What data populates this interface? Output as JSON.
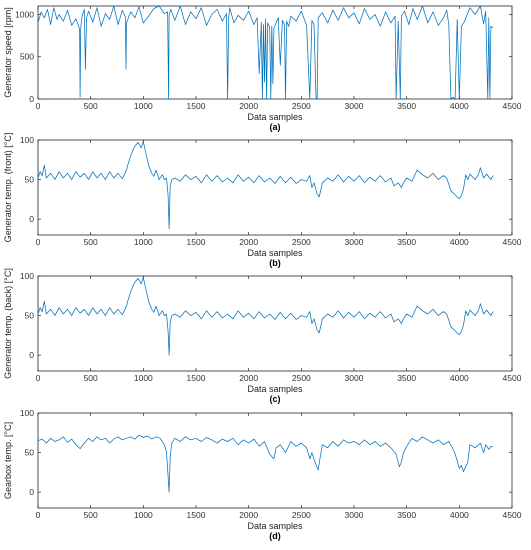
{
  "colors": {
    "line": "#0072BD",
    "axis": "#262626"
  },
  "chart_data": [
    {
      "type": "line",
      "panel": "(a)",
      "xlabel": "Data samples",
      "ylabel": "Generator speed [rpm]",
      "xlim": [
        0,
        4500
      ],
      "ylim": [
        0,
        1100
      ],
      "xticks": [
        0,
        500,
        1000,
        1500,
        2000,
        2500,
        3000,
        3500,
        4000,
        4500
      ],
      "yticks": [
        0,
        500,
        1000
      ],
      "series": [
        {
          "x": [
            0,
            30,
            60,
            90,
            120,
            150,
            180,
            200,
            240,
            280,
            320,
            360,
            395,
            400,
            405,
            420,
            440,
            450,
            460,
            480,
            520,
            560,
            600,
            640,
            680,
            720,
            760,
            800,
            830,
            835,
            840,
            880,
            920,
            960,
            1000,
            1050,
            1100,
            1150,
            1200,
            1230,
            1240,
            1245,
            1260,
            1300,
            1350,
            1400,
            1450,
            1500,
            1550,
            1600,
            1650,
            1700,
            1750,
            1790,
            1800,
            1810,
            1820,
            1860,
            1900,
            1950,
            2000,
            2050,
            2080,
            2100,
            2120,
            2130,
            2140,
            2150,
            2160,
            2170,
            2180,
            2200,
            2210,
            2220,
            2230,
            2240,
            2260,
            2280,
            2300,
            2320,
            2340,
            2350,
            2360,
            2380,
            2400,
            2450,
            2500,
            2550,
            2580,
            2600,
            2620,
            2640,
            2650,
            2660,
            2700,
            2750,
            2800,
            2850,
            2900,
            2950,
            3000,
            3050,
            3100,
            3150,
            3200,
            3250,
            3300,
            3350,
            3390,
            3400,
            3420,
            3440,
            3450,
            3480,
            3520,
            3560,
            3600,
            3650,
            3700,
            3750,
            3800,
            3850,
            3880,
            3900,
            3920,
            3940,
            3960,
            3980,
            4000,
            4020,
            4050,
            4100,
            4150,
            4200,
            4230,
            4250,
            4270,
            4280,
            4290,
            4300,
            4320
          ],
          "y": [
            900,
            1030,
            960,
            1060,
            880,
            1080,
            940,
            1000,
            920,
            1050,
            870,
            950,
            830,
            20,
            840,
            990,
            1060,
            350,
            960,
            1040,
            910,
            1080,
            860,
            1010,
            940,
            1100,
            880,
            1050,
            970,
            350,
            900,
            1030,
            960,
            1090,
            900,
            980,
            1070,
            1100,
            1010,
            1030,
            0,
            990,
            1060,
            930,
            1100,
            880,
            1030,
            950,
            1080,
            870,
            1000,
            1060,
            920,
            1010,
            0,
            960,
            1080,
            900,
            990,
            930,
            1040,
            880,
            960,
            300,
            910,
            0,
            880,
            200,
            950,
            0,
            900,
            850,
            0,
            860,
            180,
            840,
            900,
            960,
            400,
            930,
            880,
            0,
            920,
            860,
            980,
            920,
            1040,
            870,
            0,
            930,
            880,
            0,
            0,
            960,
            1020,
            900,
            1050,
            930,
            1080,
            960,
            1020,
            890,
            1070,
            940,
            1000,
            860,
            1030,
            900,
            980,
            0,
            920,
            0,
            980,
            1040,
            880,
            1070,
            940,
            1100,
            900,
            1030,
            870,
            960,
            1050,
            880,
            0,
            20,
            0,
            940,
            0,
            860,
            920,
            1080,
            1000,
            1100,
            890,
            1040,
            0,
            960,
            0,
            860,
            840
          ]
        }
      ]
    },
    {
      "type": "line",
      "panel": "(b)",
      "xlabel": "Data samples",
      "ylabel": "Generator temp. (front) [°C]",
      "xlim": [
        0,
        4500
      ],
      "ylim": [
        -20,
        100
      ],
      "xticks": [
        0,
        500,
        1000,
        1500,
        2000,
        2500,
        3000,
        3500,
        4000,
        4500
      ],
      "yticks": [
        0,
        50,
        100
      ],
      "series": [
        {
          "x": [
            0,
            20,
            40,
            60,
            80,
            120,
            160,
            200,
            240,
            280,
            320,
            360,
            400,
            440,
            480,
            520,
            560,
            600,
            640,
            680,
            720,
            760,
            800,
            840,
            860,
            880,
            900,
            920,
            950,
            980,
            1000,
            1020,
            1050,
            1080,
            1100,
            1120,
            1150,
            1180,
            1200,
            1220,
            1235,
            1245,
            1255,
            1270,
            1300,
            1350,
            1400,
            1450,
            1500,
            1550,
            1600,
            1650,
            1700,
            1750,
            1800,
            1850,
            1900,
            1950,
            2000,
            2050,
            2100,
            2150,
            2200,
            2250,
            2300,
            2350,
            2400,
            2450,
            2500,
            2550,
            2580,
            2600,
            2620,
            2650,
            2670,
            2700,
            2750,
            2800,
            2850,
            2900,
            2950,
            3000,
            3050,
            3100,
            3150,
            3200,
            3250,
            3300,
            3350,
            3380,
            3420,
            3450,
            3470,
            3500,
            3550,
            3600,
            3650,
            3700,
            3750,
            3800,
            3850,
            3880,
            3900,
            3920,
            3950,
            3980,
            4000,
            4020,
            4040,
            4060,
            4080,
            4100,
            4150,
            4180,
            4200,
            4230,
            4260,
            4300,
            4320
          ],
          "y": [
            52,
            60,
            55,
            68,
            52,
            58,
            50,
            60,
            52,
            58,
            50,
            60,
            53,
            58,
            50,
            60,
            52,
            58,
            50,
            60,
            52,
            58,
            51,
            62,
            72,
            80,
            87,
            92,
            97,
            90,
            98,
            86,
            68,
            58,
            54,
            62,
            50,
            56,
            50,
            52,
            30,
            -12,
            42,
            50,
            52,
            48,
            56,
            50,
            54,
            46,
            56,
            48,
            55,
            47,
            52,
            46,
            56,
            48,
            53,
            46,
            55,
            47,
            52,
            45,
            54,
            46,
            53,
            45,
            50,
            48,
            55,
            40,
            46,
            32,
            28,
            46,
            52,
            48,
            56,
            47,
            54,
            48,
            55,
            46,
            53,
            48,
            55,
            47,
            52,
            42,
            46,
            40,
            46,
            52,
            48,
            62,
            56,
            52,
            58,
            50,
            55,
            52,
            44,
            36,
            32,
            28,
            26,
            30,
            38,
            56,
            50,
            57,
            50,
            56,
            65,
            52,
            57,
            50,
            55
          ]
        }
      ]
    },
    {
      "type": "line",
      "panel": "(c)",
      "xlabel": "Data samples",
      "ylabel": "Generator temp. (back) [°C]",
      "xlim": [
        0,
        4500
      ],
      "ylim": [
        -20,
        100
      ],
      "xticks": [
        0,
        500,
        1000,
        1500,
        2000,
        2500,
        3000,
        3500,
        4000,
        4500
      ],
      "yticks": [
        0,
        50,
        100
      ],
      "series": [
        {
          "x": [
            0,
            20,
            40,
            60,
            80,
            120,
            160,
            200,
            240,
            280,
            320,
            360,
            400,
            440,
            480,
            520,
            560,
            600,
            640,
            680,
            720,
            760,
            800,
            840,
            860,
            880,
            900,
            920,
            950,
            980,
            1000,
            1020,
            1050,
            1080,
            1100,
            1120,
            1150,
            1180,
            1200,
            1220,
            1235,
            1245,
            1255,
            1270,
            1300,
            1350,
            1400,
            1450,
            1500,
            1550,
            1600,
            1650,
            1700,
            1750,
            1800,
            1850,
            1900,
            1950,
            2000,
            2050,
            2100,
            2150,
            2200,
            2250,
            2300,
            2350,
            2400,
            2450,
            2500,
            2550,
            2580,
            2600,
            2620,
            2650,
            2670,
            2700,
            2750,
            2800,
            2850,
            2900,
            2950,
            3000,
            3050,
            3100,
            3150,
            3200,
            3250,
            3300,
            3350,
            3380,
            3420,
            3450,
            3470,
            3500,
            3550,
            3600,
            3650,
            3700,
            3750,
            3800,
            3850,
            3880,
            3900,
            3920,
            3950,
            3980,
            4000,
            4020,
            4040,
            4060,
            4080,
            4100,
            4150,
            4180,
            4200,
            4230,
            4260,
            4300,
            4320
          ],
          "y": [
            52,
            60,
            55,
            68,
            52,
            58,
            50,
            60,
            52,
            58,
            50,
            60,
            53,
            58,
            50,
            60,
            52,
            58,
            50,
            60,
            52,
            58,
            51,
            62,
            72,
            80,
            87,
            92,
            97,
            90,
            98,
            86,
            68,
            58,
            54,
            62,
            50,
            56,
            50,
            52,
            30,
            0,
            42,
            50,
            52,
            48,
            56,
            50,
            54,
            46,
            56,
            48,
            55,
            47,
            52,
            46,
            56,
            48,
            53,
            46,
            55,
            47,
            52,
            45,
            54,
            46,
            53,
            45,
            50,
            48,
            55,
            40,
            46,
            32,
            28,
            46,
            52,
            48,
            56,
            47,
            54,
            48,
            55,
            46,
            53,
            48,
            55,
            47,
            52,
            42,
            46,
            40,
            46,
            52,
            48,
            62,
            56,
            52,
            58,
            50,
            55,
            52,
            44,
            36,
            32,
            28,
            26,
            30,
            38,
            56,
            50,
            57,
            50,
            56,
            65,
            52,
            57,
            50,
            55
          ]
        }
      ]
    },
    {
      "type": "line",
      "panel": "(d)",
      "xlabel": "Data samples",
      "ylabel": "Gearbox temp. [°C]",
      "xlim": [
        0,
        4500
      ],
      "ylim": [
        -20,
        100
      ],
      "xticks": [
        0,
        500,
        1000,
        1500,
        2000,
        2500,
        3000,
        3500,
        4000,
        4500
      ],
      "yticks": [
        0,
        50,
        100
      ],
      "series": [
        {
          "x": [
            0,
            40,
            80,
            120,
            160,
            200,
            240,
            280,
            320,
            360,
            400,
            440,
            480,
            520,
            560,
            600,
            640,
            680,
            720,
            760,
            800,
            840,
            880,
            920,
            960,
            1000,
            1040,
            1080,
            1120,
            1160,
            1200,
            1220,
            1235,
            1245,
            1255,
            1270,
            1300,
            1350,
            1400,
            1450,
            1500,
            1550,
            1600,
            1650,
            1700,
            1750,
            1800,
            1850,
            1900,
            1950,
            2000,
            2050,
            2100,
            2150,
            2200,
            2240,
            2260,
            2300,
            2350,
            2400,
            2450,
            2500,
            2550,
            2580,
            2600,
            2630,
            2660,
            2680,
            2700,
            2750,
            2800,
            2850,
            2900,
            2950,
            3000,
            3050,
            3100,
            3150,
            3200,
            3250,
            3300,
            3350,
            3400,
            3430,
            3450,
            3470,
            3500,
            3550,
            3600,
            3650,
            3700,
            3750,
            3800,
            3850,
            3900,
            3950,
            3980,
            4000,
            4020,
            4040,
            4060,
            4080,
            4100,
            4150,
            4200,
            4230,
            4250,
            4280,
            4300,
            4320
          ],
          "y": [
            65,
            67,
            62,
            68,
            64,
            66,
            70,
            63,
            67,
            60,
            55,
            62,
            68,
            64,
            70,
            66,
            68,
            62,
            67,
            70,
            66,
            68,
            70,
            67,
            72,
            69,
            71,
            67,
            70,
            68,
            60,
            50,
            20,
            0,
            45,
            62,
            68,
            64,
            70,
            66,
            68,
            64,
            69,
            66,
            62,
            67,
            64,
            68,
            60,
            66,
            62,
            67,
            58,
            64,
            48,
            42,
            56,
            60,
            50,
            64,
            58,
            62,
            56,
            42,
            50,
            38,
            28,
            45,
            60,
            56,
            64,
            58,
            66,
            62,
            64,
            60,
            66,
            60,
            64,
            58,
            62,
            56,
            48,
            32,
            38,
            50,
            58,
            68,
            64,
            70,
            66,
            62,
            66,
            60,
            64,
            52,
            40,
            30,
            34,
            26,
            32,
            38,
            60,
            56,
            62,
            50,
            60,
            54,
            58,
            57
          ]
        }
      ]
    }
  ]
}
